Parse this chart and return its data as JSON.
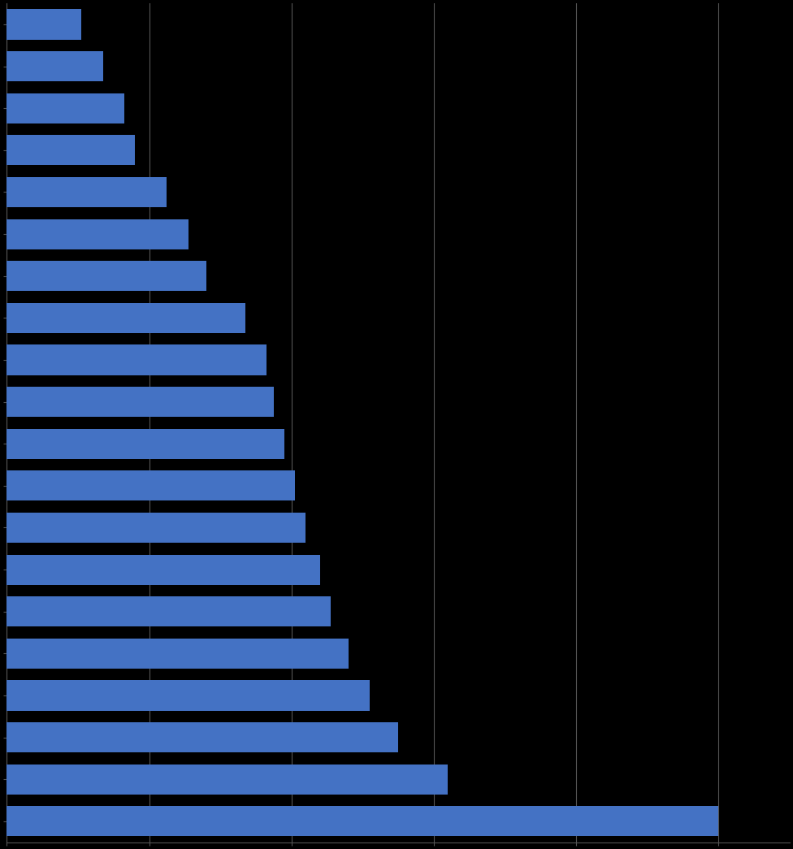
{
  "values": [
    10.5,
    13.5,
    16.5,
    18.0,
    22.5,
    25.5,
    28.0,
    33.5,
    36.5,
    37.5,
    39.0,
    40.5,
    42.0,
    44.0,
    45.5,
    48.0,
    51.0,
    55.0,
    62.0,
    100.0
  ],
  "categories": [
    "",
    "",
    "",
    "",
    "",
    "",
    "",
    "",
    "",
    "",
    "",
    "",
    "",
    "",
    "",
    "",
    "",
    "",
    "",
    ""
  ],
  "bar_color": "#4472C4",
  "background_color": "#000000",
  "bar_edge_color": "#000000",
  "xlim": [
    0,
    110
  ],
  "grid_color": "#555555",
  "grid_linewidth": 0.8,
  "bar_height": 0.72
}
